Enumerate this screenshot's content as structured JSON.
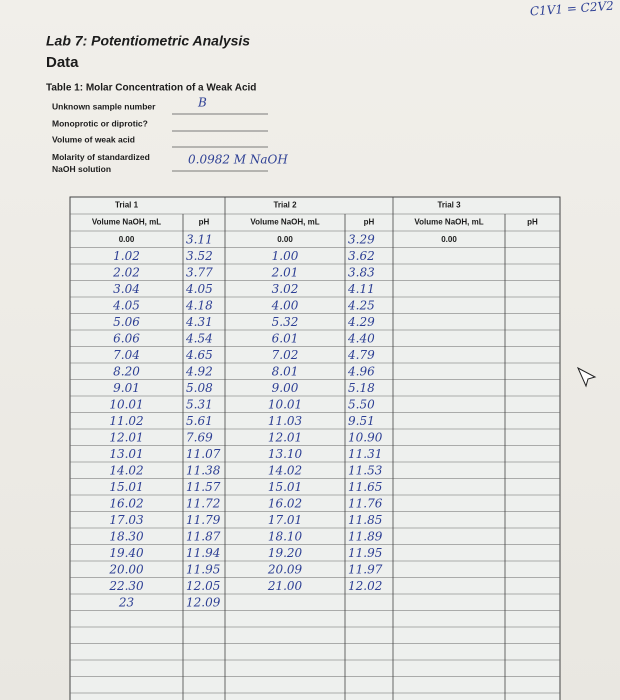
{
  "note": "C1V1 = C2V2",
  "header": {
    "title": "Lab 7: Potentiometric Analysis",
    "section": "Data",
    "table_caption": "Table 1: Molar Concentration of a Weak Acid"
  },
  "fields": [
    {
      "label": "Unknown sample number",
      "value": "B"
    },
    {
      "label": "Monoprotic or diprotic?"
    },
    {
      "label": "Volume of weak acid"
    },
    {
      "label": "Molarity of standardized NaOH solution",
      "value": "0.0982 M NaOH"
    }
  ],
  "trials": [
    {
      "label": "Trial 1",
      "volume_header": "Volume NaOH, mL",
      "ph_header": "pH",
      "volumes": [
        "0.00",
        "1.02",
        "2.02",
        "3.04",
        "4.05",
        "5.06",
        "6.06",
        "7.04",
        "8.20",
        "9.01",
        "10.01",
        "11.02",
        "12.01",
        "13.01",
        "14.02",
        "15.01",
        "16.02",
        "17.03",
        "18.30",
        "19.40",
        "20.00",
        "22.30",
        "23"
      ],
      "ph": [
        "3.11",
        "3.52",
        "3.77",
        "4.05",
        "4.18",
        "4.31",
        "4.54",
        "4.65",
        "4.92",
        "5.08",
        "5.31",
        "5.61",
        "7.69",
        "11.07",
        "11.38",
        "11.57",
        "11.72",
        "11.79",
        "11.87",
        "11.94",
        "11.95",
        "12.05",
        "12.09"
      ]
    },
    {
      "label": "Trial 2",
      "volume_header": "Volume NaOH, mL",
      "ph_header": "pH",
      "volumes": [
        "0.00",
        "1.00",
        "2.01",
        "3.02",
        "4.00",
        "5.32",
        "6.01",
        "7.02",
        "8.01",
        "9.00",
        "10.01",
        "11.03",
        "12.01",
        "13.10",
        "14.02",
        "15.01",
        "16.02",
        "17.01",
        "18.10",
        "19.20",
        "20.09",
        "21.00"
      ],
      "ph": [
        "3.29",
        "3.62",
        "3.83",
        "4.11",
        "4.25",
        "4.29",
        "4.40",
        "4.79",
        "4.96",
        "5.18",
        "5.50",
        "9.51",
        "10.90",
        "11.31",
        "11.53",
        "11.65",
        "11.76",
        "11.85",
        "11.89",
        "11.95",
        "11.97",
        "12.02"
      ]
    },
    {
      "label": "Trial 3",
      "volume_header": "Volume NaOH, mL",
      "ph_header": "pH",
      "volumes": [
        "0.00"
      ],
      "ph": []
    }
  ]
}
